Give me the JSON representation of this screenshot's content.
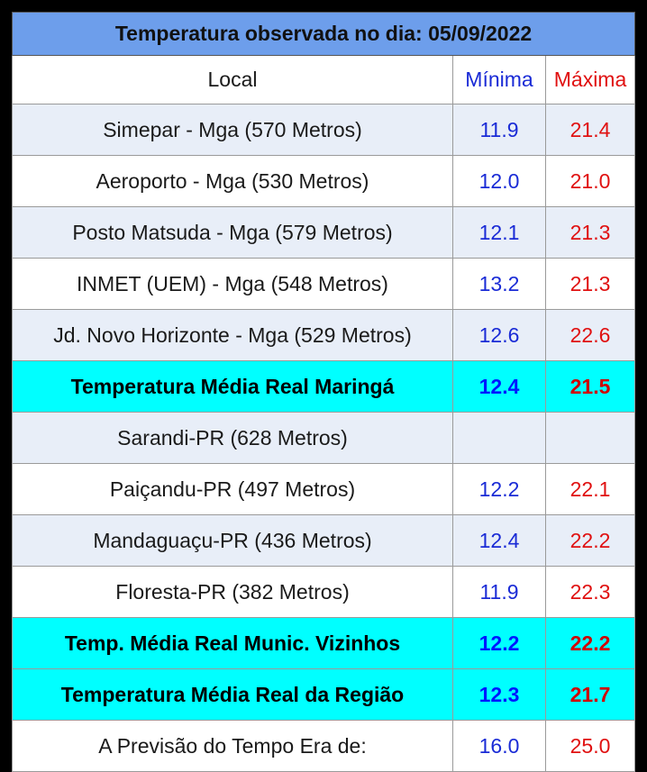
{
  "title": "Temperatura observada no dia: 05/09/2022",
  "header": {
    "local": "Local",
    "min": "Mínima",
    "max": "Máxima"
  },
  "colors": {
    "title_bg": "#6d9eeb",
    "highlight_bg": "#00ffff",
    "min_text": "#1a2bd6",
    "max_text": "#e01010",
    "stripe_bg": "#e8eef8"
  },
  "rows": [
    {
      "local": "Simepar - Mga  (570 Metros)",
      "min": "11.9",
      "max": "21.4",
      "style": "shade"
    },
    {
      "local": "Aeroporto - Mga (530 Metros)",
      "min": "12.0",
      "max": "21.0",
      "style": "plain"
    },
    {
      "local": "Posto Matsuda - Mga (579 Metros)",
      "min": "12.1",
      "max": "21.3",
      "style": "shade"
    },
    {
      "local": "INMET (UEM) - Mga  (548 Metros)",
      "min": "13.2",
      "max": "21.3",
      "style": "plain"
    },
    {
      "local": "Jd. Novo Horizonte - Mga (529 Metros)",
      "min": "12.6",
      "max": "22.6",
      "style": "shade"
    },
    {
      "local": "Temperatura Média Real Maringá",
      "min": "12.4",
      "max": "21.5",
      "style": "highlight"
    },
    {
      "local": "Sarandi-PR  (628 Metros)",
      "min": "",
      "max": "",
      "style": "shade"
    },
    {
      "local": "Paiçandu-PR (497 Metros)",
      "min": "12.2",
      "max": "22.1",
      "style": "plain"
    },
    {
      "local": "Mandaguaçu-PR (436 Metros)",
      "min": "12.4",
      "max": "22.2",
      "style": "shade"
    },
    {
      "local": "Floresta-PR (382 Metros)",
      "min": "11.9",
      "max": "22.3",
      "style": "plain"
    },
    {
      "local": "Temp. Média Real Munic. Vizinhos",
      "min": "12.2",
      "max": "22.2",
      "style": "highlight"
    },
    {
      "local": "Temperatura Média Real da Região",
      "min": "12.3",
      "max": "21.7",
      "style": "highlight"
    },
    {
      "local": "A Previsão do Tempo Era de:",
      "min": "16.0",
      "max": "25.0",
      "style": "plain"
    }
  ]
}
